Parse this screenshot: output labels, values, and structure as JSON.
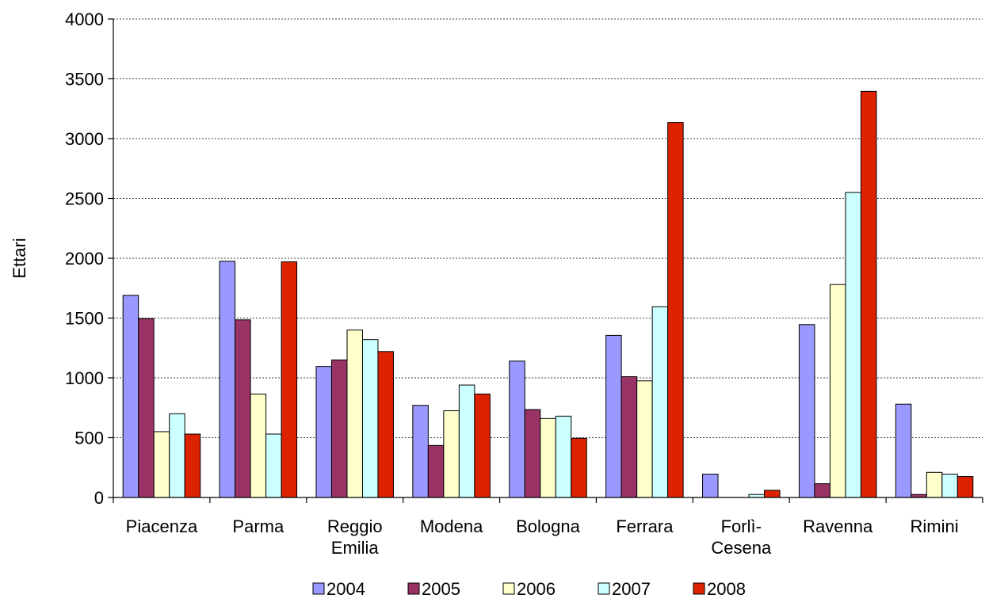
{
  "chart_data": {
    "type": "bar",
    "ylabel": "Ettari",
    "xlabel": "",
    "ylim": [
      0,
      4000
    ],
    "yticks": [
      0,
      500,
      1000,
      1500,
      2000,
      2500,
      3000,
      3500,
      4000
    ],
    "grid": true,
    "legend_position": "bottom",
    "categories": [
      [
        "Piacenza"
      ],
      [
        "Parma"
      ],
      [
        "Reggio",
        "Emilia"
      ],
      [
        "Modena"
      ],
      [
        "Bologna"
      ],
      [
        "Ferrara"
      ],
      [
        "Forlì-",
        "Cesena"
      ],
      [
        "Ravenna"
      ],
      [
        "Rimini"
      ]
    ],
    "series": [
      {
        "name": "2004",
        "color": "#9999ff",
        "values": [
          1690,
          1975,
          1095,
          770,
          1140,
          1355,
          195,
          1445,
          780
        ]
      },
      {
        "name": "2005",
        "color": "#993366",
        "values": [
          1495,
          1485,
          1150,
          435,
          735,
          1010,
          0,
          115,
          25
        ]
      },
      {
        "name": "2006",
        "color": "#ffffcc",
        "values": [
          550,
          865,
          1400,
          725,
          660,
          975,
          0,
          1780,
          210
        ]
      },
      {
        "name": "2007",
        "color": "#ccffff",
        "values": [
          700,
          530,
          1320,
          940,
          680,
          1595,
          25,
          2550,
          195
        ]
      },
      {
        "name": "2008",
        "color": "#dd2200",
        "values": [
          530,
          1970,
          1220,
          865,
          495,
          3135,
          60,
          3395,
          175
        ]
      }
    ]
  }
}
